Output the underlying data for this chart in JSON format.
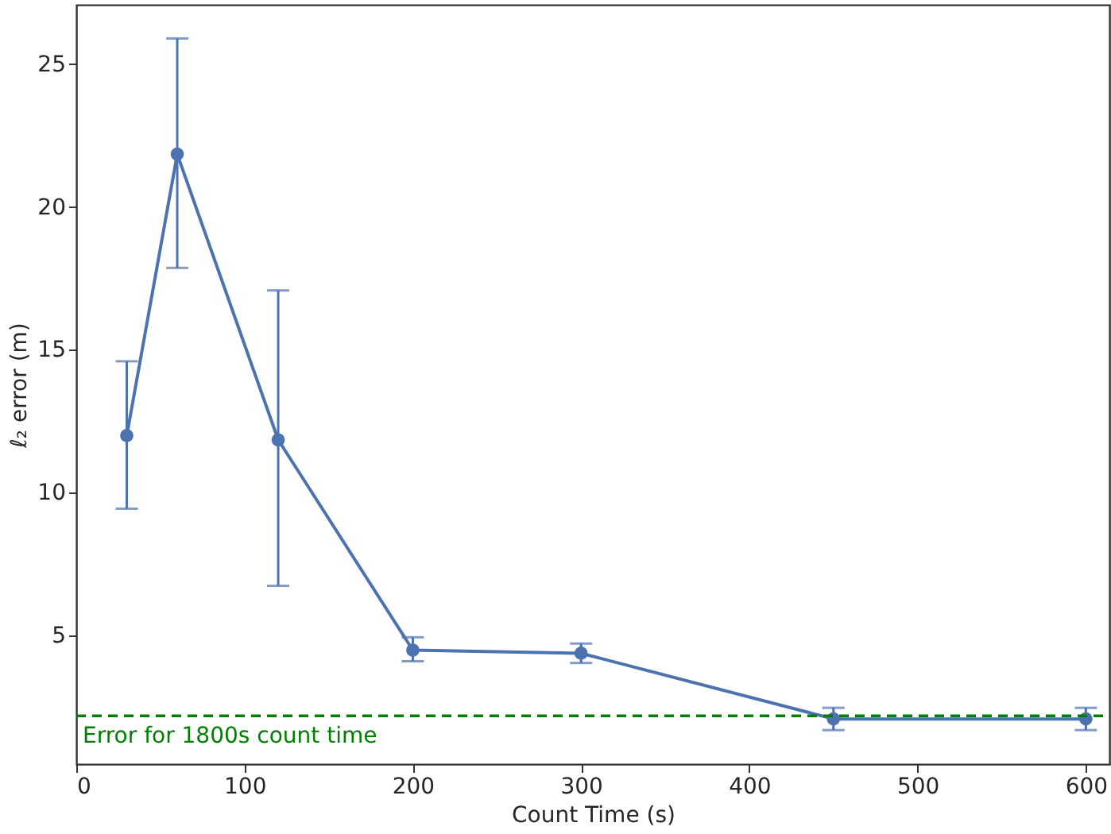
{
  "chart_data": {
    "type": "line",
    "xlabel": "Count Time (s)",
    "ylabel": "ℓ₂ error (m)",
    "x": [
      30,
      60,
      120,
      200,
      300,
      450,
      600
    ],
    "series": [
      {
        "color": "#4c72b0",
        "values": [
          12.0,
          21.85,
          11.85,
          4.49,
          4.38,
          2.08,
          2.08
        ],
        "errors": [
          [
            9.44,
            14.6
          ],
          [
            17.87,
            25.9
          ],
          [
            6.74,
            17.08
          ],
          [
            4.1,
            4.94
          ],
          [
            4.04,
            4.72
          ],
          [
            1.69,
            2.47
          ],
          [
            1.69,
            2.47
          ]
        ]
      }
    ],
    "xlim": [
      0,
      614
    ],
    "xticks": [
      0,
      100,
      200,
      300,
      400,
      500,
      600
    ],
    "ylim": [
      0.5,
      27.08
    ],
    "yticks": [
      5,
      10,
      15,
      20,
      25
    ],
    "ref_lines": [
      {
        "axis": "y",
        "value": 2.19,
        "label": "Error for 1800s count time",
        "color": "#008000",
        "line_style": "dashed"
      }
    ],
    "marker": "circle",
    "line_style": "solid",
    "grid": false
  }
}
